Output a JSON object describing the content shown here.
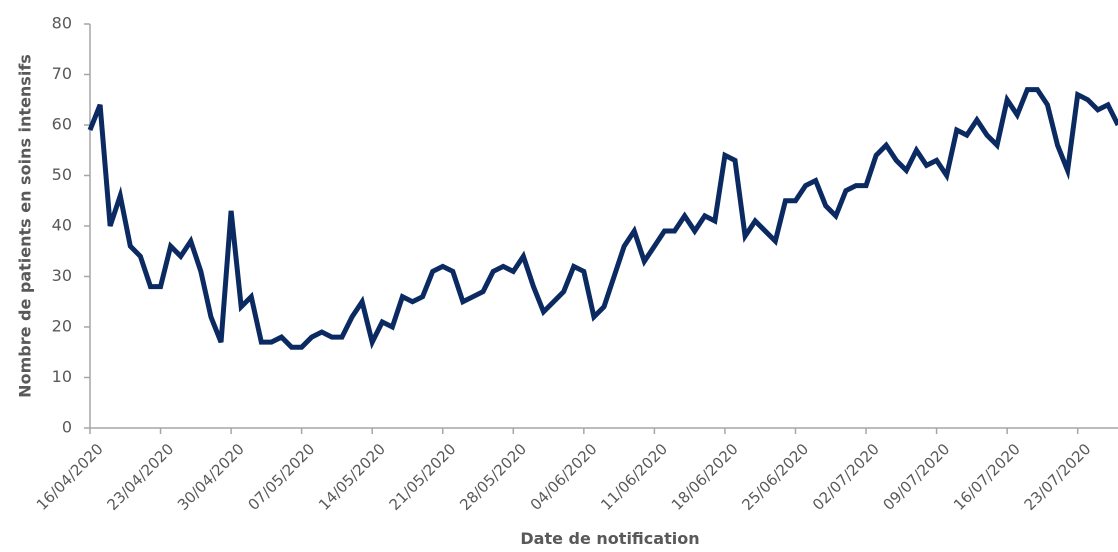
{
  "chart_data": {
    "type": "line",
    "y_label": "Nombre de patients en soins intensifs",
    "x_label": "Date de notification",
    "categories": [
      "16/04/2020",
      null,
      null,
      null,
      null,
      null,
      null,
      "23/04/2020",
      null,
      null,
      null,
      null,
      null,
      null,
      "30/04/2020",
      null,
      null,
      null,
      null,
      null,
      null,
      "07/05/2020",
      null,
      null,
      null,
      null,
      null,
      null,
      "14/05/2020",
      null,
      null,
      null,
      null,
      null,
      null,
      "21/05/2020",
      null,
      null,
      null,
      null,
      null,
      null,
      "28/05/2020",
      null,
      null,
      null,
      null,
      null,
      null,
      "04/06/2020",
      null,
      null,
      null,
      null,
      null,
      null,
      "11/06/2020",
      null,
      null,
      null,
      null,
      null,
      null,
      "18/06/2020",
      null,
      null,
      null,
      null,
      null,
      null,
      "25/06/2020",
      null,
      null,
      null,
      null,
      null,
      null,
      "02/07/2020",
      null,
      null,
      null,
      null,
      null,
      null,
      "09/07/2020",
      null,
      null,
      null,
      null,
      null,
      null,
      "16/07/2020",
      null,
      null,
      null,
      null,
      null,
      null,
      "23/07/2020",
      null,
      null,
      null,
      null
    ],
    "values": [
      59,
      64,
      40,
      46,
      36,
      34,
      28,
      28,
      36,
      34,
      37,
      31,
      22,
      17,
      43,
      24,
      26,
      17,
      17,
      18,
      16,
      16,
      18,
      19,
      18,
      18,
      22,
      25,
      17,
      21,
      20,
      26,
      25,
      26,
      31,
      32,
      31,
      25,
      26,
      27,
      31,
      32,
      31,
      34,
      28,
      23,
      25,
      27,
      32,
      31,
      22,
      24,
      30,
      36,
      39,
      33,
      36,
      39,
      39,
      42,
      39,
      42,
      41,
      54,
      53,
      38,
      41,
      39,
      37,
      45,
      45,
      48,
      49,
      44,
      42,
      47,
      48,
      48,
      54,
      56,
      53,
      51,
      55,
      52,
      53,
      50,
      59,
      58,
      61,
      58,
      56,
      65,
      62,
      67,
      67,
      64,
      56,
      51,
      66,
      65,
      63,
      64,
      60
    ],
    "color": "#0c2a62",
    "ylim": [
      0,
      80
    ],
    "yticks": [
      0,
      10,
      20,
      30,
      40,
      50,
      60,
      70,
      80
    ]
  }
}
